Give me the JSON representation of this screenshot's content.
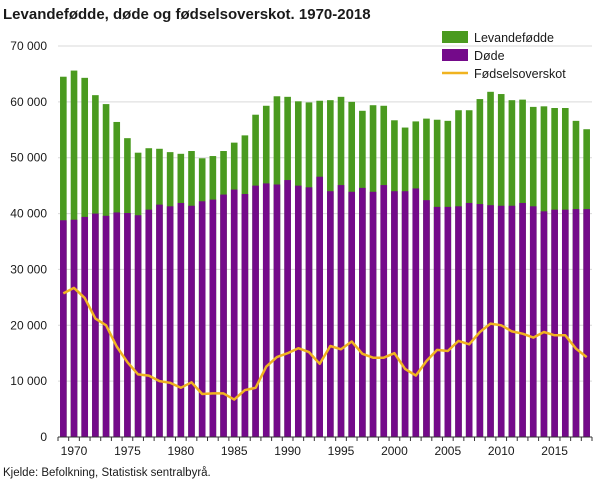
{
  "chart_data": {
    "type": "bar",
    "title": "Levandefødde, døde og fødselsoverskot. 1970-2018",
    "source": "Kjelde: Befolkning, Statistisk sentralbyrå.",
    "xlabel": "",
    "ylabel": "",
    "ylim": [
      0,
      70000
    ],
    "yticks": [
      "0",
      "10 000",
      "20 000",
      "30 000",
      "40 000",
      "50 000",
      "60 000",
      "70 000"
    ],
    "ytick_values": [
      0,
      10000,
      20000,
      30000,
      40000,
      50000,
      60000,
      70000
    ],
    "xticks": [
      "1970",
      "1975",
      "1980",
      "1985",
      "1990",
      "1995",
      "2000",
      "2005",
      "2010",
      "2015"
    ],
    "xtick_values": [
      1970,
      1975,
      1980,
      1985,
      1990,
      1995,
      2000,
      2005,
      2010,
      2015
    ],
    "grid": true,
    "legend_position": "top-right",
    "colors": {
      "births": "#4a9a1f",
      "deaths": "#740a8a",
      "surplus": "#f0b320",
      "grid": "#d9d9d9"
    },
    "categories": [
      1969,
      1970,
      1971,
      1972,
      1973,
      1974,
      1975,
      1976,
      1977,
      1978,
      1979,
      1980,
      1981,
      1982,
      1983,
      1984,
      1985,
      1986,
      1987,
      1988,
      1989,
      1990,
      1991,
      1992,
      1993,
      1994,
      1995,
      1996,
      1997,
      1998,
      1999,
      2000,
      2001,
      2002,
      2003,
      2004,
      2005,
      2006,
      2007,
      2008,
      2009,
      2010,
      2011,
      2012,
      2013,
      2014,
      2015,
      2016,
      2017,
      2018
    ],
    "series": [
      {
        "name": "Levandefødde",
        "kind": "bar",
        "values": [
          64500,
          65600,
          64300,
          61200,
          59600,
          56400,
          53500,
          50900,
          51700,
          51600,
          51000,
          50700,
          51200,
          49900,
          50300,
          51200,
          52700,
          54000,
          57700,
          59300,
          61000,
          60900,
          60100,
          59900,
          60200,
          60300,
          60900,
          60000,
          58400,
          59400,
          59300,
          56700,
          55400,
          56500,
          57000,
          56800,
          56600,
          58500,
          58500,
          60500,
          61800,
          61400,
          60300,
          60400,
          59100,
          59200,
          58900,
          58900,
          56600,
          55100
        ]
      },
      {
        "name": "Døde",
        "kind": "bar",
        "values": [
          38800,
          38900,
          39400,
          40000,
          39600,
          40200,
          40100,
          39700,
          40700,
          41600,
          41300,
          41900,
          41400,
          42200,
          42500,
          43400,
          44300,
          43500,
          45000,
          45400,
          45200,
          46000,
          45000,
          44700,
          46600,
          44000,
          45100,
          43900,
          44600,
          43900,
          45100,
          44000,
          44000,
          44500,
          42400,
          41200,
          41200,
          41300,
          41900,
          41700,
          41500,
          41400,
          41400,
          41900,
          41300,
          40400,
          40700,
          40700,
          40800,
          40800
        ]
      },
      {
        "name": "Fødselsoverskot",
        "kind": "line",
        "values": [
          25700,
          26700,
          24900,
          21200,
          20000,
          16200,
          13400,
          11200,
          11000,
          10000,
          9700,
          8800,
          9800,
          7700,
          7800,
          7800,
          6700,
          8400,
          8800,
          12600,
          14300,
          15000,
          15900,
          15200,
          13100,
          16300,
          15700,
          17100,
          14900,
          14200,
          14200,
          15000,
          12200,
          11000,
          13600,
          15600,
          15400,
          17200,
          16600,
          18800,
          20300,
          20000,
          18900,
          18500,
          17800,
          18800,
          18200,
          18200,
          15800,
          14300
        ]
      }
    ]
  }
}
